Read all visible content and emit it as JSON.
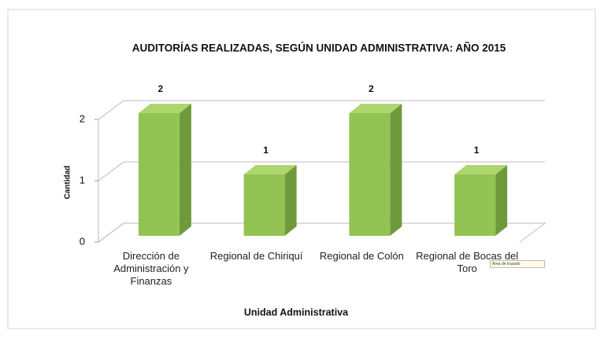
{
  "chart_data": {
    "type": "bar3d",
    "title": "AUDITORÍAS REALIZADAS, SEGÚN UNIDAD ADMINISTRATIVA:   AÑO 2015",
    "x_label": "Unidad Administrativa",
    "y_label": "Cantidad",
    "categories": [
      "Dirección de Administración y Finanzas",
      "Regional de Chiriquí",
      "Regional de Colón",
      "Regional de Bocas del Toro"
    ],
    "values": [
      2,
      1,
      2,
      1
    ],
    "color": "#92c353",
    "ylim": [
      0,
      2
    ],
    "yticks": [
      0,
      1,
      2
    ],
    "grid": true,
    "tooltip": "Área de trazado"
  }
}
